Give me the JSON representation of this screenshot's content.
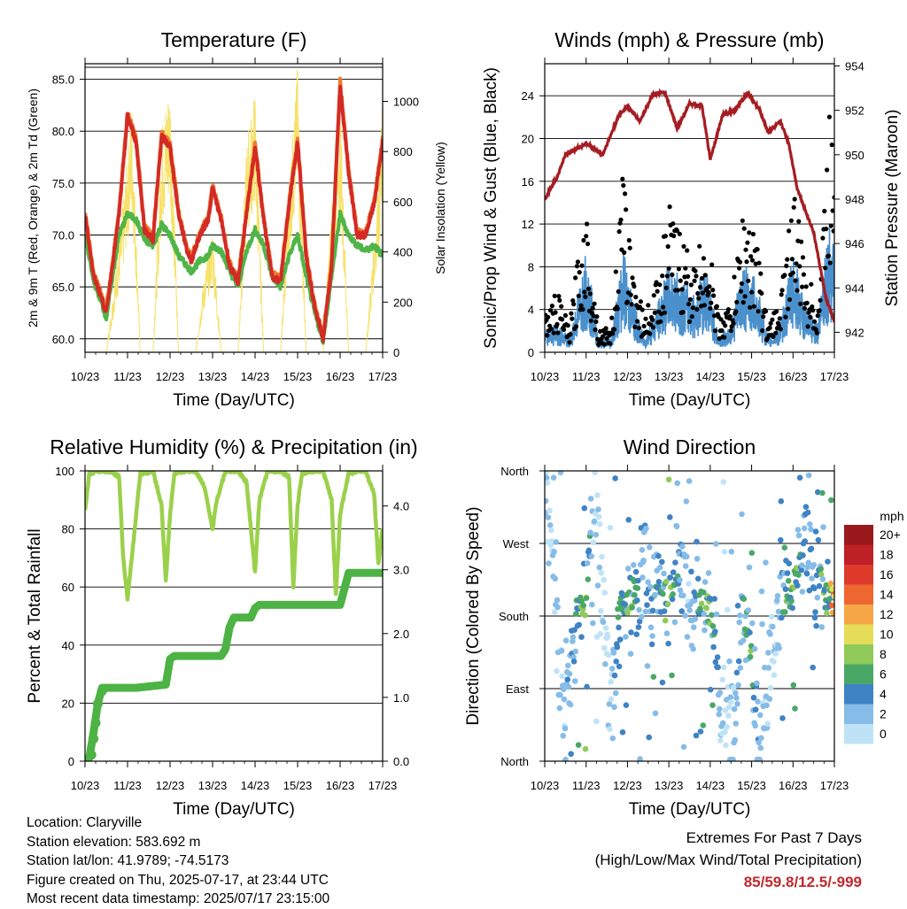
{
  "chart_data": [
    {
      "type": "line",
      "title": "Temperature (F)",
      "xlabel": "Time (Day/UTC)",
      "ylabel": "2m & 9m T (Red, Orange) & 2m Td (Green)",
      "ylabel_right": "Solar Insolation (Yellow)",
      "x_ticks": [
        "10/23",
        "11/23",
        "12/23",
        "13/23",
        "14/23",
        "15/23",
        "16/23",
        "17/23"
      ],
      "ylim": [
        58.7,
        86.5
      ],
      "y_ticks": [
        "60.0",
        "65.0",
        "70.0",
        "75.0",
        "80.0",
        "85.0"
      ],
      "y_right_lim": [
        0,
        1150
      ],
      "y_right_ticks": [
        "0",
        "200",
        "400",
        "600",
        "800",
        "1000"
      ],
      "grid": true,
      "colors": {
        "t2m": "#d42a25",
        "t9m": "#ef7a2c",
        "td": "#50b548",
        "solar": "#f6e26a"
      },
      "series": [
        {
          "name": "2m T",
          "color": "#d42a25",
          "x": [
            0,
            0.2,
            0.3,
            0.5,
            0.8,
            1.0,
            1.2,
            1.4,
            1.6,
            1.8,
            2.0,
            2.2,
            2.4,
            2.5,
            2.7,
            2.9,
            3.0,
            3.2,
            3.4,
            3.6,
            3.8,
            4.0,
            4.2,
            4.4,
            4.6,
            4.8,
            5.0,
            5.2,
            5.4,
            5.6,
            5.8,
            6.0,
            6.2,
            6.4,
            6.6,
            6.8,
            7.0
          ],
          "y": [
            72,
            66,
            65,
            62.5,
            72,
            81.5,
            79,
            70.5,
            69.5,
            79.5,
            78.5,
            72,
            68.5,
            67.5,
            70,
            71.5,
            74.5,
            71.5,
            67,
            65.5,
            72,
            78.5,
            71.5,
            66,
            65.5,
            73,
            79,
            68,
            63,
            60,
            67,
            84.5,
            76,
            70,
            70,
            73,
            79
          ]
        },
        {
          "name": "2m Td",
          "color": "#50b548",
          "x": [
            0,
            0.2,
            0.3,
            0.5,
            0.8,
            1.0,
            1.2,
            1.4,
            1.6,
            1.8,
            2.0,
            2.2,
            2.4,
            2.5,
            2.7,
            2.9,
            3.0,
            3.2,
            3.4,
            3.6,
            3.8,
            4.0,
            4.2,
            4.4,
            4.6,
            4.8,
            5.0,
            5.2,
            5.4,
            5.6,
            5.8,
            6.0,
            6.2,
            6.4,
            6.6,
            6.8,
            7.0
          ],
          "y": [
            70,
            65.5,
            64.5,
            62,
            70,
            72,
            71.5,
            69.5,
            69,
            71,
            70,
            68,
            67,
            66.5,
            67.5,
            68,
            69,
            68.5,
            66.5,
            65,
            68.5,
            70.5,
            69,
            66,
            65,
            68,
            70,
            66,
            62.5,
            59.8,
            66,
            72,
            70,
            69,
            68.5,
            69,
            68
          ]
        },
        {
          "name": "Solar",
          "color": "#f6e26a",
          "x": [
            0,
            0.5,
            0.9,
            1.1,
            1.3,
            1.6,
            1.8,
            2.0,
            2.2,
            2.6,
            2.8,
            3.0,
            3.2,
            3.6,
            3.8,
            4.0,
            4.2,
            4.6,
            4.8,
            5.0,
            5.2,
            5.6,
            5.8,
            6.0,
            6.2,
            6.6,
            6.9,
            7.0
          ],
          "y": [
            0,
            0,
            600,
            1000,
            0,
            0,
            900,
            1100,
            0,
            0,
            300,
            500,
            0,
            0,
            850,
            1050,
            0,
            0,
            700,
            1150,
            0,
            0,
            600,
            1000,
            0,
            0,
            700,
            1000
          ]
        }
      ]
    },
    {
      "type": "scatter",
      "title": "Winds (mph) & Pressure (mb)",
      "xlabel": "Time (Day/UTC)",
      "ylabel": "Sonic/Prop Wind & Gust (Blue, Black)",
      "ylabel_right": "Station Pressure (Maroon)",
      "x_ticks": [
        "10/23",
        "11/23",
        "12/23",
        "13/23",
        "14/23",
        "15/23",
        "16/23",
        "17/23"
      ],
      "ylim": [
        0,
        27
      ],
      "y_ticks": [
        "0",
        "4",
        "8",
        "12",
        "16",
        "20",
        "24"
      ],
      "y_right_lim": [
        941.1,
        954.1
      ],
      "y_right_ticks": [
        "942",
        "944",
        "946",
        "948",
        "950",
        "952",
        "954"
      ],
      "grid": true,
      "colors": {
        "wind": "#4a90cc",
        "gust": "#000000",
        "pressure": "#a51d23"
      },
      "series": [
        {
          "name": "Station Pressure",
          "color": "#a51d23",
          "x": [
            0,
            0.3,
            0.5,
            1.0,
            1.4,
            1.8,
            2.0,
            2.3,
            2.6,
            2.9,
            3.2,
            3.5,
            3.8,
            4.0,
            4.3,
            4.6,
            4.9,
            5.2,
            5.4,
            5.7,
            5.9,
            6.1,
            6.3,
            6.5,
            6.8,
            7.0
          ],
          "y": [
            948,
            949,
            950,
            950.5,
            950,
            951.8,
            952.2,
            951.5,
            952.7,
            952.8,
            951.2,
            952.3,
            952.2,
            949.8,
            951.8,
            952,
            952.8,
            952,
            951,
            951.5,
            950.5,
            948.5,
            947.5,
            946.5,
            943.5,
            942.5
          ]
        },
        {
          "name": "Wind",
          "color": "#4a90cc",
          "x": [
            0,
            0.3,
            0.6,
            0.8,
            1.0,
            1.3,
            1.6,
            1.9,
            2.1,
            2.4,
            2.7,
            3.0,
            3.3,
            3.6,
            3.9,
            4.2,
            4.5,
            4.8,
            5.1,
            5.4,
            5.7,
            6.0,
            6.3,
            6.6,
            6.8,
            7.0
          ],
          "y": [
            1.5,
            2,
            1,
            4,
            7,
            1,
            1,
            7,
            4,
            1,
            3,
            6,
            5,
            4,
            6,
            1,
            2,
            6,
            5,
            1,
            2,
            7,
            3,
            2,
            8,
            9
          ]
        },
        {
          "name": "Gust",
          "color": "#000000",
          "x": [
            0,
            0.3,
            0.6,
            0.8,
            1.0,
            1.3,
            1.6,
            1.9,
            2.1,
            2.4,
            2.7,
            3.0,
            3.3,
            3.6,
            3.9,
            4.2,
            4.5,
            4.8,
            5.1,
            5.4,
            5.7,
            6.0,
            6.3,
            6.6,
            6.8,
            7.0
          ],
          "y": [
            3,
            5,
            2,
            8,
            12,
            2,
            2,
            15,
            8,
            3,
            6,
            12,
            10,
            7,
            11,
            3,
            4,
            12,
            10,
            2,
            5,
            14,
            7,
            4,
            16,
            24
          ]
        }
      ]
    },
    {
      "type": "line",
      "title": "Relative Humidity (%) & Precipitation (in)",
      "xlabel": "Time (Day/UTC)",
      "ylabel": "Percent & Total Rainfall",
      "x_ticks": [
        "10/23",
        "11/23",
        "12/23",
        "13/23",
        "14/23",
        "15/23",
        "16/23",
        "17/23"
      ],
      "ylim": [
        0,
        100
      ],
      "y_ticks": [
        "0",
        "20",
        "40",
        "60",
        "80",
        "100"
      ],
      "y_right_lim": [
        0,
        4.55
      ],
      "y_right_ticks": [
        "0.0",
        "1.0",
        "2.0",
        "3.0",
        "4.0"
      ],
      "grid": true,
      "colors": {
        "rh": "#9bd04b",
        "rain": "#4cb344"
      },
      "series": [
        {
          "name": "RH",
          "color": "#9bd04b",
          "x": [
            0,
            0.1,
            0.3,
            0.6,
            0.8,
            0.9,
            1.0,
            1.1,
            1.3,
            1.6,
            1.8,
            1.9,
            2.0,
            2.1,
            2.3,
            2.6,
            2.8,
            3.0,
            3.1,
            3.3,
            3.6,
            3.8,
            4.0,
            4.1,
            4.3,
            4.6,
            4.8,
            4.9,
            5.0,
            5.1,
            5.3,
            5.6,
            5.8,
            5.9,
            6.0,
            6.2,
            6.4,
            6.6,
            6.8,
            6.9,
            7.0
          ],
          "y": [
            86,
            99,
            100,
            100,
            98,
            70,
            56,
            70,
            99,
            100,
            88,
            62,
            85,
            99,
            100,
            100,
            95,
            80,
            90,
            100,
            100,
            96,
            65,
            90,
            100,
            100,
            98,
            60,
            88,
            99,
            100,
            100,
            90,
            57,
            85,
            99,
            100,
            100,
            92,
            68,
            80
          ]
        },
        {
          "name": "Total Rainfall",
          "color": "#4cb344",
          "x": [
            0,
            0.1,
            0.2,
            0.3,
            0.4,
            0.5,
            1.2,
            1.9,
            2.0,
            2.1,
            3.2,
            3.3,
            3.4,
            3.5,
            3.9,
            4.0,
            4.1,
            5.0,
            6.0,
            6.1,
            6.2,
            6.3,
            6.4,
            7.0
          ],
          "y": [
            0,
            0.05,
            0.45,
            0.9,
            1.15,
            1.15,
            1.15,
            1.2,
            1.6,
            1.65,
            1.65,
            1.75,
            2.1,
            2.25,
            2.25,
            2.4,
            2.45,
            2.45,
            2.45,
            2.7,
            2.95,
            2.95,
            2.95,
            2.95
          ]
        }
      ]
    },
    {
      "type": "scatter",
      "title": "Wind Direction",
      "xlabel": "Time (Day/UTC)",
      "ylabel": "Direction (Colored By Speed)",
      "x_ticks": [
        "10/23",
        "11/23",
        "12/23",
        "13/23",
        "14/23",
        "15/23",
        "16/23",
        "17/23"
      ],
      "y_ticks": [
        "North",
        "East",
        "South",
        "West",
        "North"
      ],
      "ylim": [
        0,
        360
      ],
      "grid": true,
      "colorbar": {
        "title": "mph",
        "labels": [
          "20+",
          "18",
          "16",
          "14",
          "12",
          "10",
          "8",
          "6",
          "4",
          "2",
          "0"
        ],
        "colors": [
          "#99191d",
          "#be2026",
          "#dd3a2b",
          "#ee6630",
          "#f6a644",
          "#e5dd58",
          "#8fca5a",
          "#4aa867",
          "#3f83c4",
          "#86bce8",
          "#bfe3f6"
        ]
      },
      "series": [
        {
          "name": "Direction",
          "x": [
            0,
            0.5,
            0.8,
            1.0,
            1.2,
            1.6,
            1.8,
            2.0,
            2.4,
            2.6,
            2.8,
            3.0,
            3.3,
            3.5,
            3.8,
            4.0,
            4.3,
            4.6,
            4.8,
            5.0,
            5.2,
            5.6,
            5.8,
            6.0,
            6.3,
            6.6,
            6.8,
            7.0
          ],
          "y": [
            340,
            40,
            190,
            200,
            330,
            50,
            200,
            190,
            240,
            195,
            210,
            205,
            250,
            180,
            200,
            190,
            60,
            30,
            195,
            120,
            20,
            180,
            200,
            210,
            270,
            220,
            200,
            205
          ],
          "speed": [
            1,
            2,
            5,
            8,
            1,
            1,
            6,
            7,
            3,
            4,
            5,
            8,
            3,
            2,
            6,
            7,
            1,
            2,
            5,
            6,
            2,
            1,
            6,
            8,
            3,
            4,
            8,
            12
          ]
        }
      ]
    }
  ],
  "info": {
    "location": "Location: Claryville",
    "elevation": "Station elevation: 583.692 m",
    "latlon": "Station lat/lon: 41.9789; -74.5173",
    "created": "Figure created on Thu, 2025-07-17, at 23:44 UTC",
    "recent": "Most recent data timestamp: 2025/07/17 23:15:00"
  },
  "extremes": {
    "heading": "Extremes For Past 7 Days",
    "subheading": "(High/Low/Max Wind/Total Precipitation)",
    "values": "85/59.8/12.5/-999"
  }
}
